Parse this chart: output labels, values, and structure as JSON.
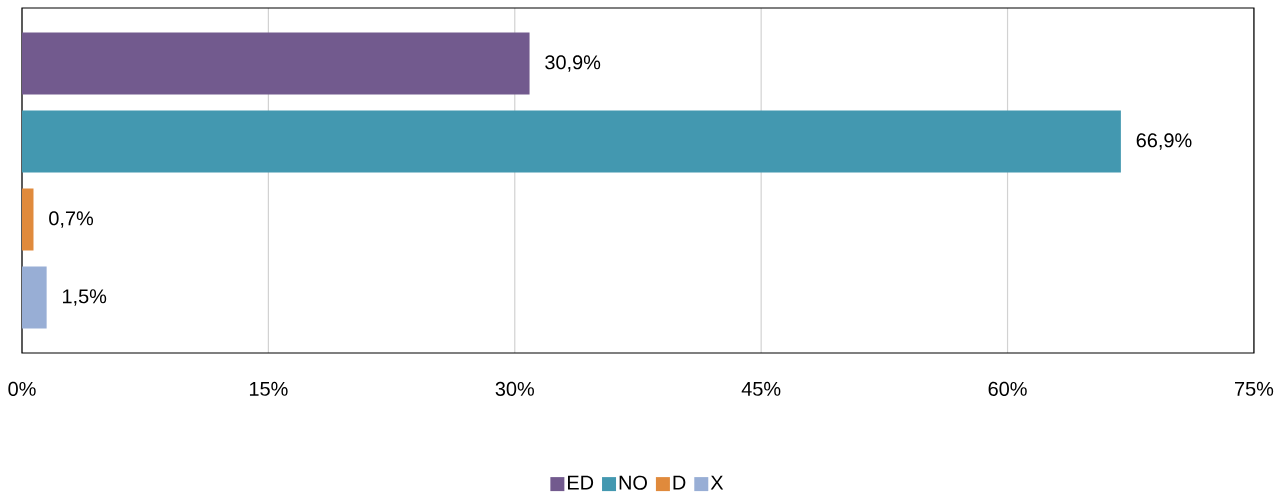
{
  "chart_data": {
    "type": "bar",
    "orientation": "horizontal",
    "categories": [
      null
    ],
    "series": [
      {
        "name": "ED",
        "color": "#725a8e",
        "values": [
          30.9
        ],
        "value_labels": [
          "30,9%"
        ]
      },
      {
        "name": "NO",
        "color": "#4398b0",
        "values": [
          66.9
        ],
        "value_labels": [
          "66,9%"
        ]
      },
      {
        "name": "D",
        "color": "#e08a3c",
        "values": [
          0.7
        ],
        "value_labels": [
          "0,7%"
        ]
      },
      {
        "name": "X",
        "color": "#98aed5",
        "values": [
          1.5
        ],
        "value_labels": [
          "1,5%"
        ]
      }
    ],
    "xlim": [
      0,
      75
    ],
    "xticks": [
      {
        "value": 0,
        "label": "0%"
      },
      {
        "value": 15,
        "label": "15%"
      },
      {
        "value": 30,
        "label": "30%"
      },
      {
        "value": 45,
        "label": "45%"
      },
      {
        "value": 60,
        "label": "60%"
      },
      {
        "value": 75,
        "label": "75%"
      }
    ],
    "grid": "x",
    "legend": "bottom",
    "tick_labels": "x"
  }
}
